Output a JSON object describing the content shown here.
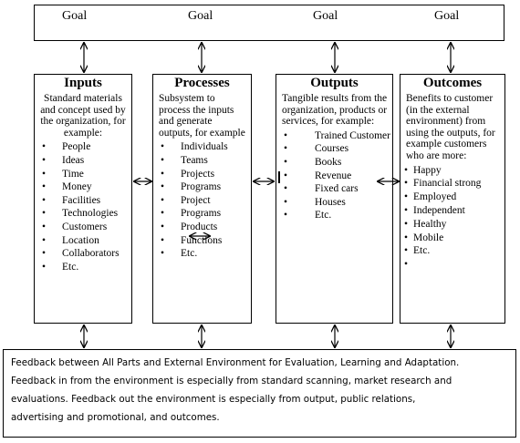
{
  "goals": [
    "Goal",
    "Goal",
    "Goal",
    "Goal"
  ],
  "columns": [
    {
      "title": "Inputs",
      "description": "Standard materials and concept used by the organization, for example:",
      "items": [
        "People",
        "Ideas",
        "Time",
        "Money",
        "Facilities",
        "Technologies",
        "Customers",
        "Location",
        "Collaborators",
        "Etc."
      ]
    },
    {
      "title": "Processes",
      "description": "Subsystem to process the inputs and generate outputs, for example",
      "items": [
        "Individuals",
        "Teams",
        "Projects",
        "Programs",
        "Project",
        "Programs",
        "Products",
        "Functions",
        "Etc."
      ]
    },
    {
      "title": "Outputs",
      "description": "Tangible results from the organization, products or services, for example:",
      "items": [
        "Trained Customer",
        "Courses",
        "Books",
        "Revenue",
        "Fixed cars",
        "Houses",
        "Etc."
      ]
    },
    {
      "title": "Outcomes",
      "description": "Benefits to customer (in the external environment) from using the outputs, for example customers who are more:",
      "items": [
        "Happy",
        "Financial strong",
        "Employed",
        "Independent",
        "Healthy",
        "Mobile",
        "Etc.",
        ""
      ]
    }
  ],
  "feedback": {
    "lines": [
      "Feedback between All Parts and External Environment for Evaluation, Learning and Adaptation.",
      "Feedback in from the environment is especially from standard scanning, market research and",
      "evaluations. Feedback out the environment is especially from output, public relations,",
      "advertising and promotional, and outcomes."
    ]
  }
}
